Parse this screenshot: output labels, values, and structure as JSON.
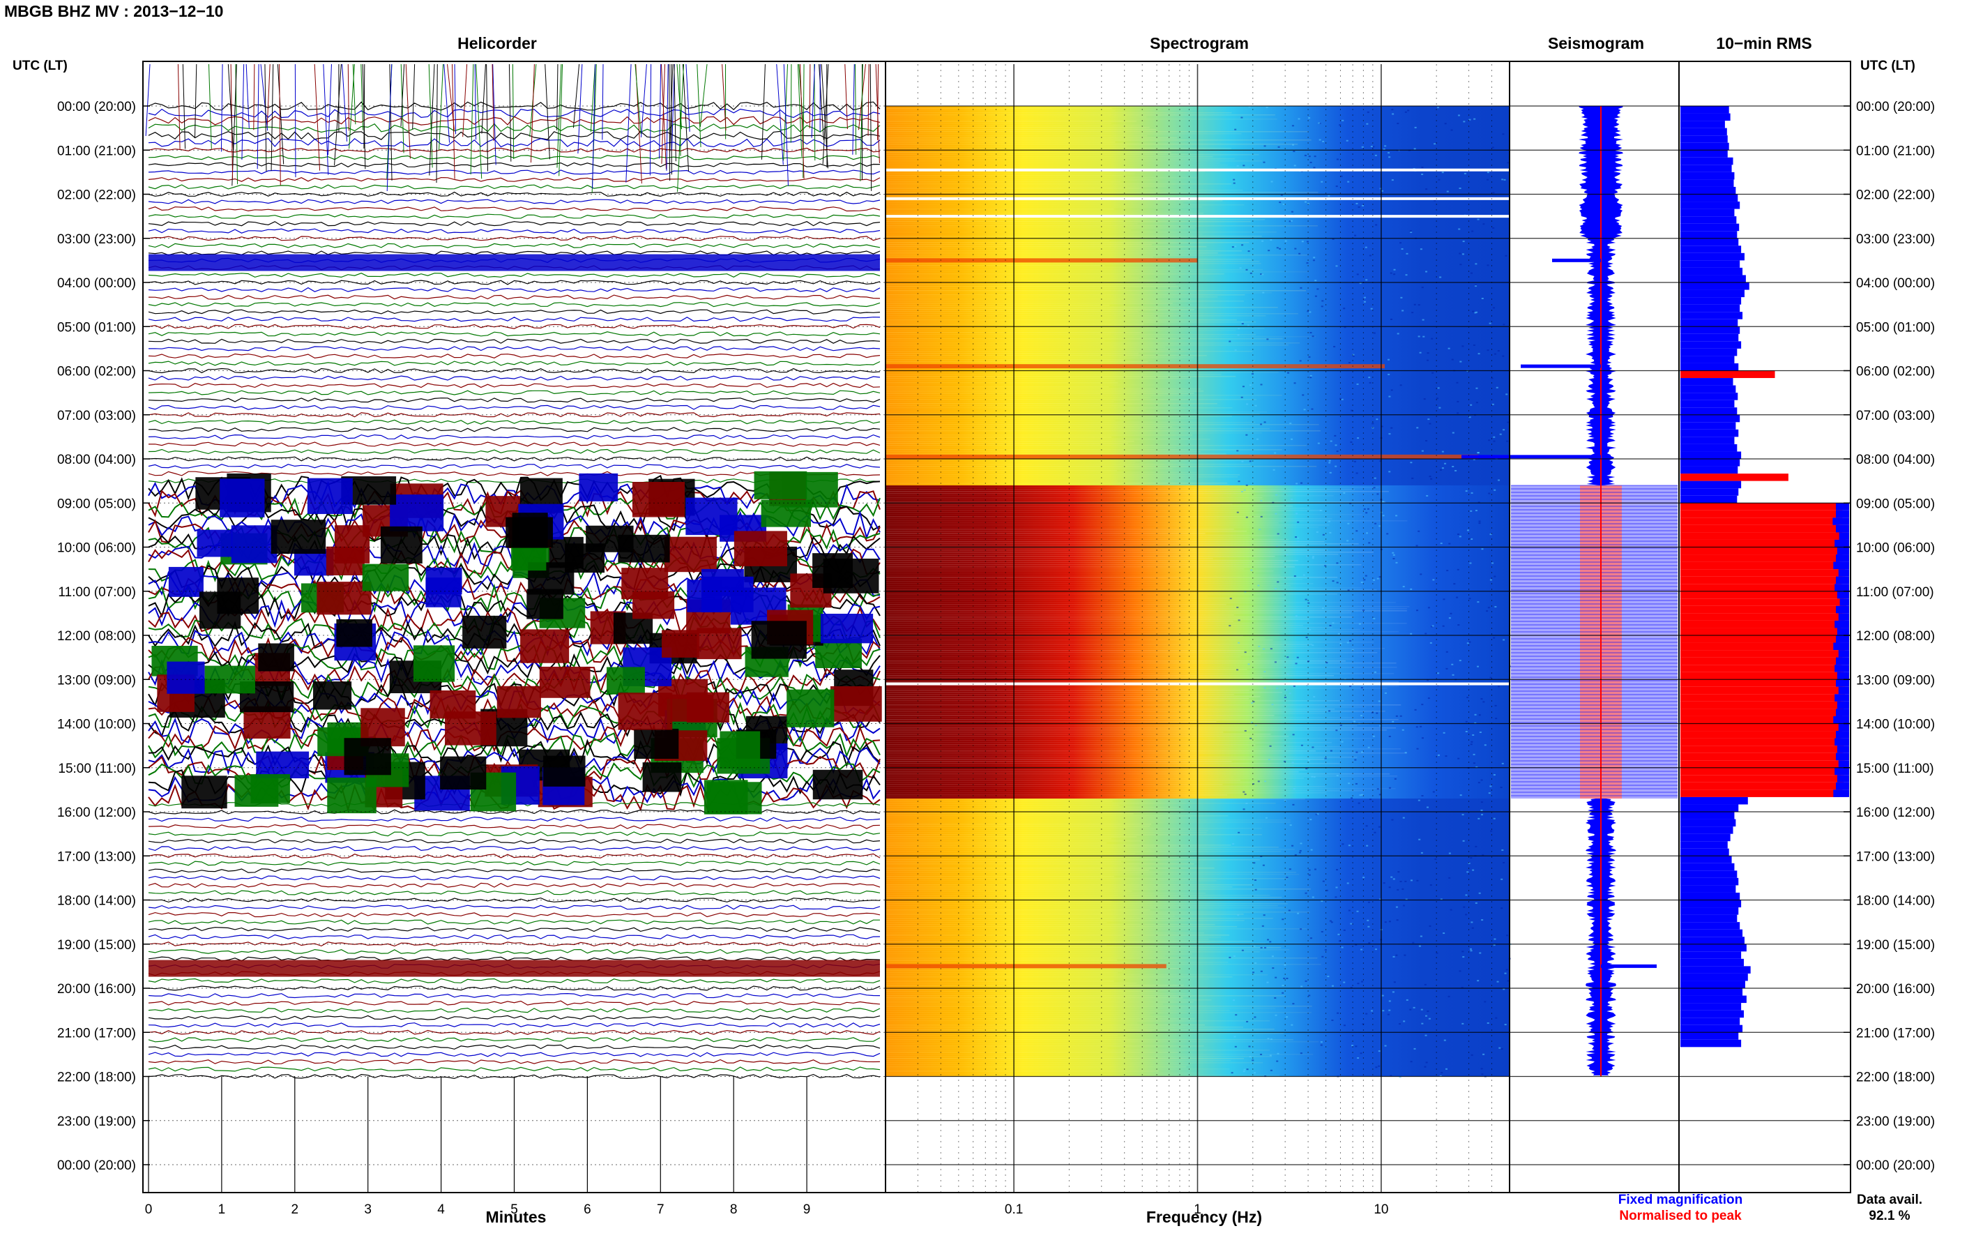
{
  "header": {
    "station_title": "MBGB BHZ MV : 2013−12−10"
  },
  "panels": {
    "helicorder": "Helicorder",
    "spectrogram": "Spectrogram",
    "seismogram": "Seismogram",
    "rms": "10−min RMS"
  },
  "axis": {
    "time_header_left": "UTC (LT)",
    "time_header_right": "UTC (LT)",
    "minutes_label": "Minutes",
    "frequency_label": "Frequency (Hz)"
  },
  "legend": {
    "fixed": "Fixed magnification",
    "normalised": "Normalised to peak",
    "fixed_color": "#0000ff",
    "normalised_color": "#ff0000"
  },
  "data_availability": {
    "label": "Data avail.",
    "value": "92.1 %"
  },
  "colors": {
    "trace_cycle": [
      "#000000",
      "#0000cc",
      "#880000",
      "#007700"
    ],
    "rms_fixed": "#0000ff",
    "rms_norm": "#ff0000"
  },
  "chart_data": {
    "type": "heatmap",
    "time_ticks": [
      "00:00 (20:00)",
      "01:00 (21:00)",
      "02:00 (22:00)",
      "03:00 (23:00)",
      "04:00 (00:00)",
      "05:00 (01:00)",
      "06:00 (02:00)",
      "07:00 (03:00)",
      "08:00 (04:00)",
      "09:00 (05:00)",
      "10:00 (06:00)",
      "11:00 (07:00)",
      "12:00 (08:00)",
      "13:00 (09:00)",
      "14:00 (10:00)",
      "15:00 (11:00)",
      "16:00 (12:00)",
      "17:00 (13:00)",
      "18:00 (14:00)",
      "19:00 (15:00)",
      "20:00 (16:00)",
      "21:00 (17:00)",
      "22:00 (18:00)",
      "23:00 (19:00)",
      "00:00 (20:00)"
    ],
    "minute_ticks": [
      "0",
      "1",
      "2",
      "3",
      "4",
      "5",
      "6",
      "7",
      "8",
      "9"
    ],
    "minute_range": [
      0,
      10
    ],
    "frequency_ticks": [
      "0.1",
      "1",
      "10"
    ],
    "frequency_range": [
      0.02,
      50
    ],
    "frequency_scale": "log",
    "time_range_hours": [
      0,
      24
    ],
    "data_end_hour": 22,
    "high_activity_hours": [
      8.6,
      15.7
    ],
    "rms_10min": [
      0.72,
      0.74,
      0.66,
      0.69,
      0.7,
      0.72,
      0.7,
      0.78,
      0.76,
      0.8,
      0.79,
      0.82,
      0.85,
      0.88,
      0.8,
      0.83,
      0.87,
      0.84,
      0.86,
      0.9,
      0.95,
      0.88,
      0.92,
      0.97,
      1.02,
      0.95,
      0.9,
      0.88,
      0.92,
      0.85,
      0.88,
      0.86,
      0.9,
      0.84,
      0.8,
      0.86,
      1.4,
      0.78,
      0.82,
      0.85,
      0.8,
      0.84,
      0.88,
      0.82,
      0.86,
      0.8,
      0.84,
      0.9,
      0.88,
      0.85,
      1.6,
      0.9,
      0.86,
      0.84,
      2.4,
      2.4,
      2.35,
      2.4,
      2.45,
      2.38,
      2.42,
      2.4,
      2.36,
      2.44,
      2.4,
      2.38,
      2.42,
      2.46,
      2.4,
      2.44,
      2.38,
      2.42,
      2.4,
      2.36,
      2.44,
      2.4,
      2.38,
      2.42,
      2.4,
      2.44,
      2.38,
      2.42,
      2.4,
      2.36,
      2.44,
      2.4,
      2.38,
      2.42,
      2.4,
      2.44,
      2.38,
      2.42,
      2.4,
      2.36,
      1.0,
      0.86,
      0.8,
      0.82,
      0.78,
      0.74,
      0.7,
      0.72,
      0.76,
      0.8,
      0.84,
      0.86,
      0.82,
      0.88,
      0.9,
      0.86,
      0.84,
      0.88,
      0.92,
      0.95,
      0.98,
      0.9,
      0.94,
      1.04,
      1.0,
      0.96,
      0.92,
      0.98,
      0.9,
      0.94,
      0.88,
      0.92,
      0.86,
      0.9
    ],
    "rms_reference": 1.0
  }
}
